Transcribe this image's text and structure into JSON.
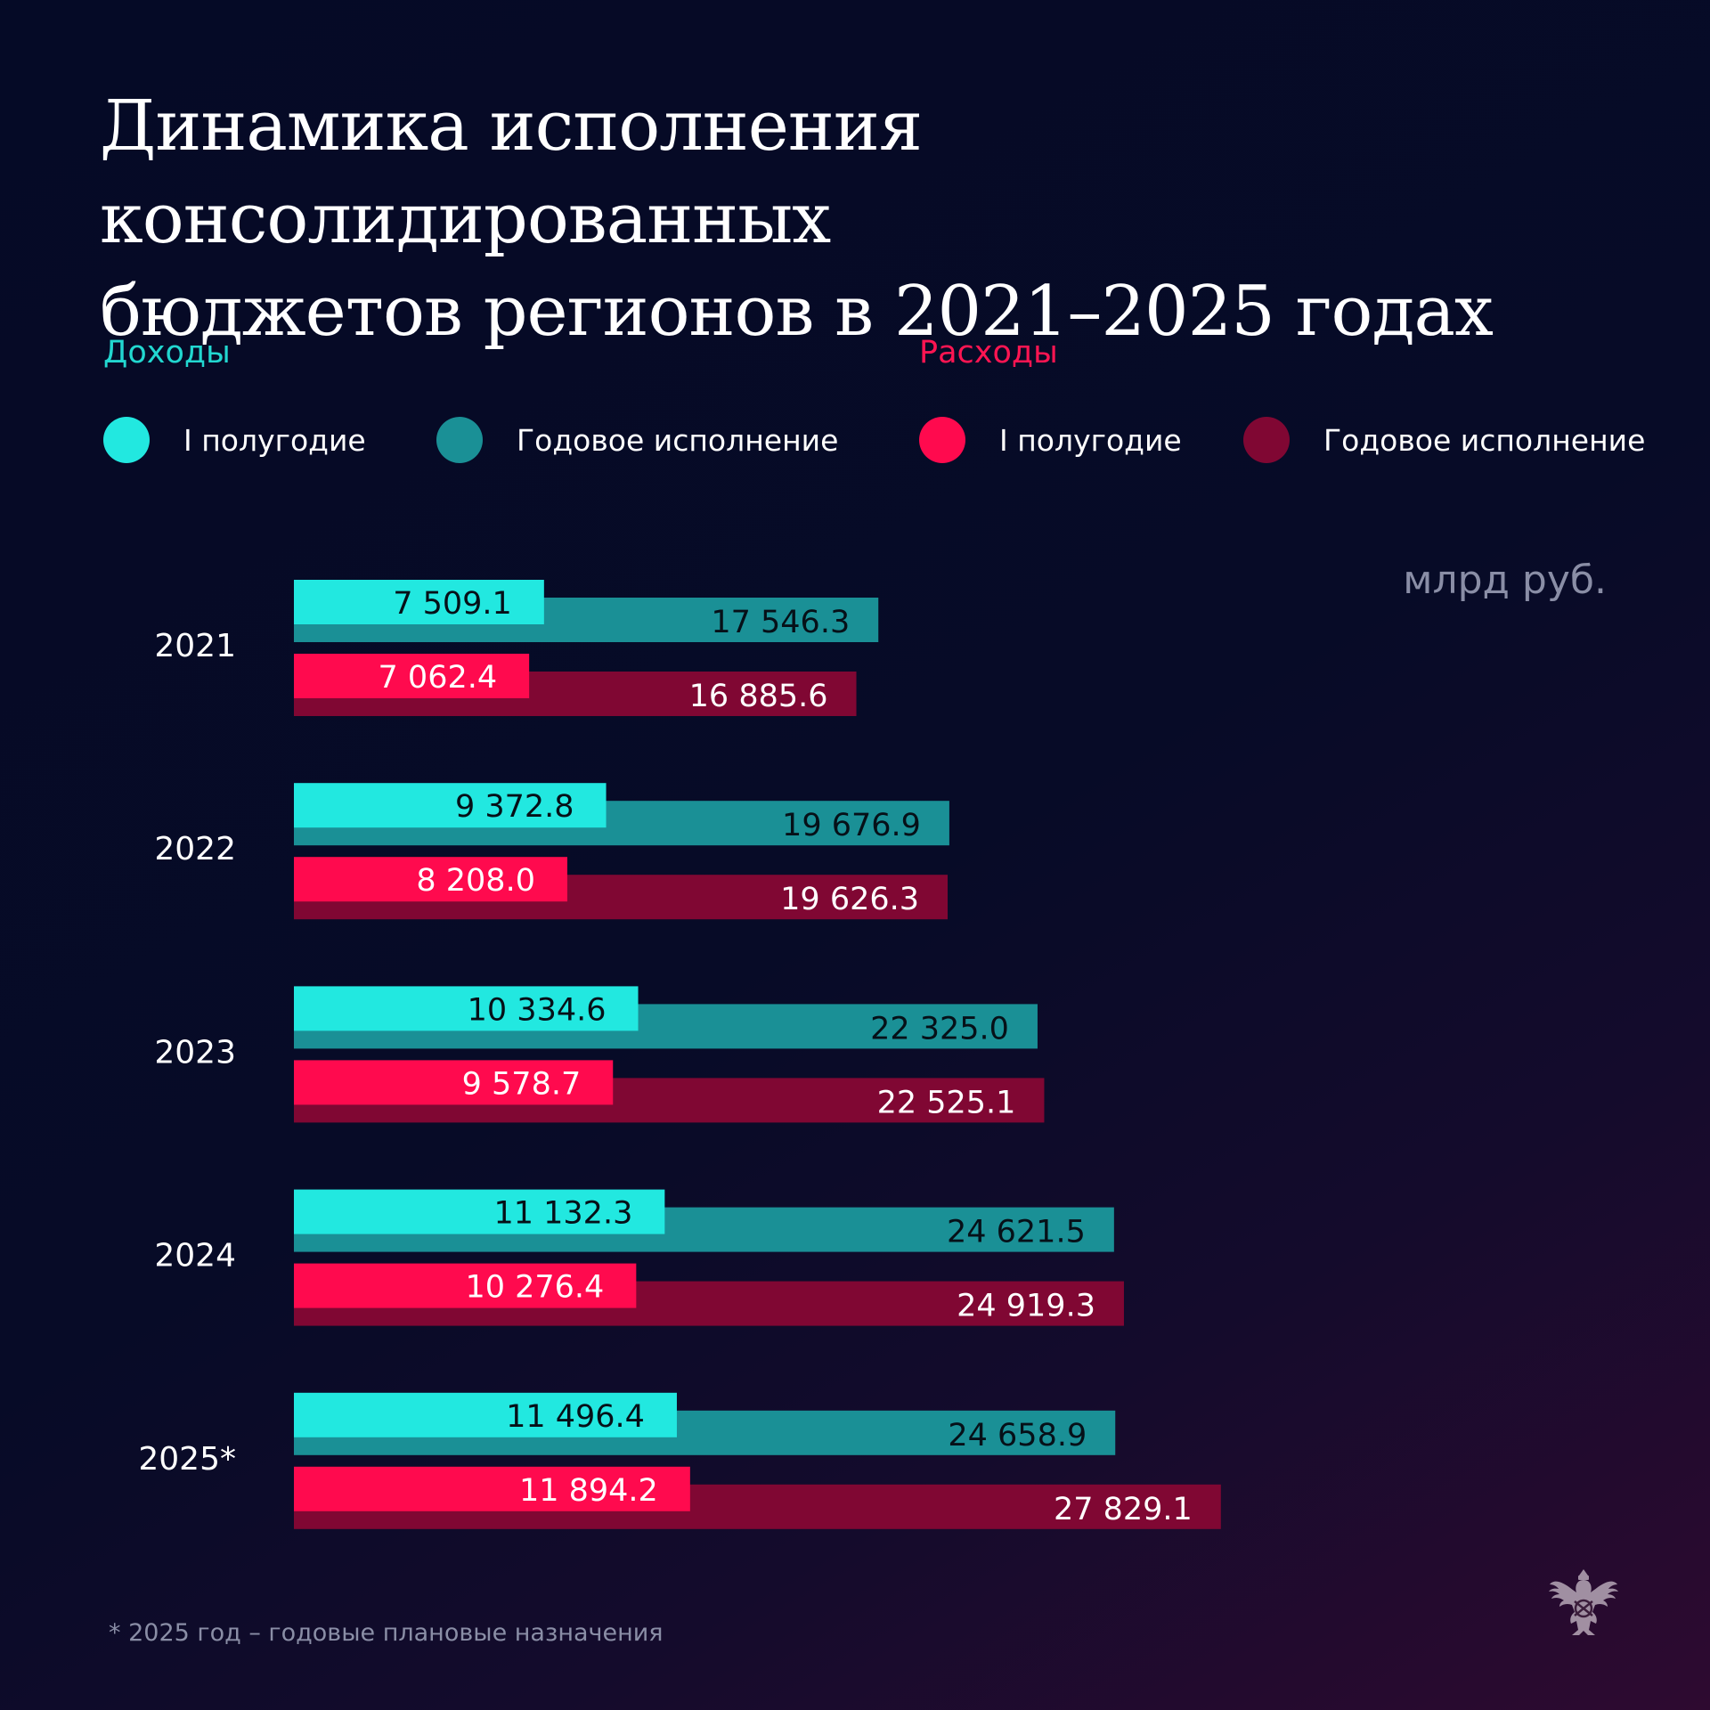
{
  "title": "Динамика исполнения консолидированных\nбюджетов регионов в 2021–2025 годах",
  "legend": {
    "income_label": "Доходы",
    "expense_label": "Расходы",
    "items": [
      {
        "label": "I полугодие",
        "color": "#22e8e0"
      },
      {
        "label": "Годовое исполнение",
        "color": "#1a9096"
      },
      {
        "label": "I полугодие",
        "color": "#ff0a4e"
      },
      {
        "label": "Годовое исполнение",
        "color": "#800733"
      }
    ]
  },
  "unit": "млрд руб.",
  "footnote": "* 2025 год – годовые плановые назначения",
  "emblem_icon": "double-headed-eagle-emblem",
  "colors": {
    "income_half": "#22e8e0",
    "income_year": "#1a9096",
    "expense_half": "#ff0a4e",
    "expense_year": "#800733",
    "income_label": "#22d7d0",
    "expense_label": "#ff1552"
  },
  "chart_data": {
    "type": "bar",
    "orientation": "horizontal",
    "unit": "млрд руб.",
    "categories": [
      "2021",
      "2022",
      "2023",
      "2024",
      "2025*"
    ],
    "series": [
      {
        "name": "Доходы — I полугодие",
        "values": [
          7509.1,
          9372.8,
          10334.6,
          11132.3,
          11496.4
        ],
        "labels": [
          "7 509.1",
          "9 372.8",
          "10 334.6",
          "11 132.3",
          "11 496.4"
        ]
      },
      {
        "name": "Доходы — Годовое исполнение",
        "values": [
          17546.3,
          19676.9,
          22325.0,
          24621.5,
          24658.9
        ],
        "labels": [
          "17 546.3",
          "19 676.9",
          "22 325.0",
          "24 621.5",
          "24 658.9"
        ]
      },
      {
        "name": "Расходы — I полугодие",
        "values": [
          7062.4,
          8208.0,
          9578.7,
          10276.4,
          11894.2
        ],
        "labels": [
          "7 062.4",
          "8 208.0",
          "9 578.7",
          "10 276.4",
          "11 894.2"
        ]
      },
      {
        "name": "Расходы — Годовое исполнение",
        "values": [
          16885.6,
          19626.3,
          22525.1,
          24919.3,
          27829.1
        ],
        "labels": [
          "16 885.6",
          "19 626.3",
          "22 525.1",
          "24 919.3",
          "27 829.1"
        ]
      }
    ],
    "grid": false
  }
}
